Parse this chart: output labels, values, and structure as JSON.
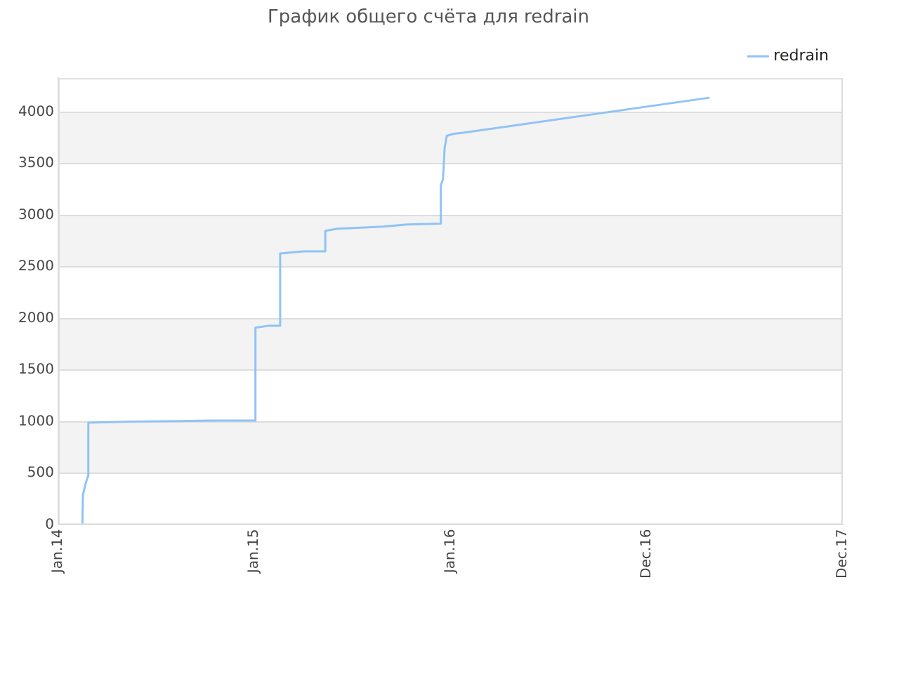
{
  "chart_data": {
    "type": "line",
    "title": "График общего счёта для redrain",
    "x": [
      "2014-02-15",
      "2014-02-16",
      "2014-02-20",
      "2014-02-25",
      "2014-02-26",
      "2014-05-16",
      "2014-10-16",
      "2015-01-01",
      "2015-01-03",
      "2015-01-28",
      "2015-02-18",
      "2015-02-18",
      "2015-04-03",
      "2015-05-13",
      "2015-05-13",
      "2015-06-05",
      "2015-07-18",
      "2015-08-29",
      "2015-10-12",
      "2015-12-14",
      "2015-12-14",
      "2015-12-18",
      "2015-12-21",
      "2015-12-25",
      "2016-01-07",
      "2016-01-25",
      "2017-04-27"
    ],
    "series": [
      {
        "name": "redrain",
        "color": "#90c3f5",
        "values": [
          0,
          290,
          380,
          470,
          990,
          1000,
          1010,
          1010,
          1910,
          1930,
          1930,
          2630,
          2650,
          2650,
          2850,
          2870,
          2880,
          2890,
          2910,
          2920,
          3290,
          3350,
          3650,
          3770,
          3790,
          3800,
          4140
        ]
      }
    ],
    "xlim": [
      "2014-01-01",
      "2017-12-31"
    ],
    "xticks": [
      {
        "value": "2014-01-01",
        "label": "Jan.14"
      },
      {
        "value": "2015-01-01",
        "label": "Jan.15"
      },
      {
        "value": "2016-01-01",
        "label": "Jan.16"
      },
      {
        "value": "2016-12-31",
        "label": "Dec.16"
      },
      {
        "value": "2017-12-31",
        "label": "Dec.17"
      }
    ],
    "ylim": [
      0,
      4330
    ],
    "yticks": [
      0,
      500,
      1000,
      1500,
      2000,
      2500,
      3000,
      3500,
      4000
    ],
    "grid": "y",
    "legend": "top right",
    "marker": "none",
    "line_style": "solid"
  }
}
